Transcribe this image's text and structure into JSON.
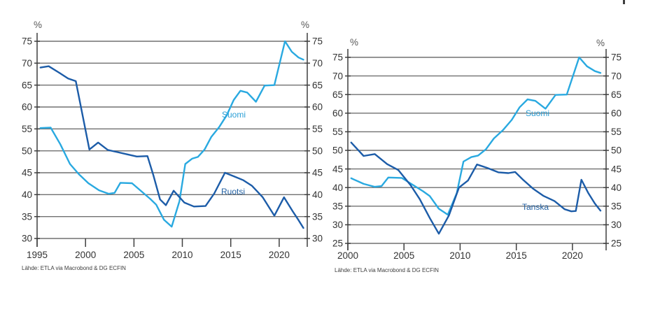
{
  "page": {
    "background": "#ffffff"
  },
  "styles": {
    "grid_color": "#707070",
    "axis_color": "#3f3f3f",
    "tick_label_color": "#333333",
    "unit_label_color": "#595959",
    "source_color": "#3d3d3d",
    "light_blue": "#29A9E0",
    "dark_blue": "#1C5CA8"
  },
  "chart_data": [
    {
      "type": "line",
      "title": "",
      "xlabel": "",
      "ylabel": "%",
      "unit_label": "%",
      "source_note": "Lähde: ETLA via Macrobond & DG ECFIN",
      "grid": true,
      "legend_position": "inline-labels",
      "y_axis_labels": "both-sides",
      "x_ticks": [
        1995,
        2000,
        2005,
        2010,
        2015,
        2020
      ],
      "y_ticks": [
        30,
        35,
        40,
        45,
        50,
        55,
        60,
        65,
        70,
        75
      ],
      "x_range": [
        1995,
        2022.9
      ],
      "ylim": [
        30,
        75
      ],
      "series": [
        {
          "name": "Suomi",
          "color": "#29A9E0",
          "points": [
            [
              1995.35,
              55.2
            ],
            [
              1996.4,
              55.3
            ],
            [
              1997.4,
              51.5
            ],
            [
              1998.4,
              47.0
            ],
            [
              1999.3,
              44.7
            ],
            [
              2000.3,
              42.6
            ],
            [
              2001.4,
              41.0
            ],
            [
              2002.4,
              40.2
            ],
            [
              2003.0,
              40.4
            ],
            [
              2003.6,
              42.7
            ],
            [
              2004.8,
              42.6
            ],
            [
              2005.8,
              40.7
            ],
            [
              2006.7,
              39.0
            ],
            [
              2007.3,
              37.7
            ],
            [
              2008.1,
              34.3
            ],
            [
              2008.9,
              32.7
            ],
            [
              2009.7,
              38.5
            ],
            [
              2010.3,
              47.0
            ],
            [
              2011.0,
              48.2
            ],
            [
              2011.6,
              48.6
            ],
            [
              2012.3,
              50.3
            ],
            [
              2013.0,
              53.2
            ],
            [
              2013.8,
              55.4
            ],
            [
              2014.6,
              58.2
            ],
            [
              2015.3,
              61.6
            ],
            [
              2016.0,
              63.7
            ],
            [
              2016.7,
              63.3
            ],
            [
              2017.6,
              61.2
            ],
            [
              2018.5,
              64.9
            ],
            [
              2019.5,
              65.0
            ],
            [
              2020.6,
              75.0
            ],
            [
              2021.3,
              72.6
            ],
            [
              2022.0,
              71.3
            ],
            [
              2022.5,
              70.8
            ]
          ]
        },
        {
          "name": "Ruotsi",
          "color": "#1C5CA8",
          "points": [
            [
              1995.35,
              69.0
            ],
            [
              1996.2,
              69.3
            ],
            [
              1997.3,
              67.8
            ],
            [
              1998.2,
              66.5
            ],
            [
              1999.0,
              65.9
            ],
            [
              2000.4,
              50.3
            ],
            [
              2001.3,
              51.9
            ],
            [
              2002.3,
              50.2
            ],
            [
              2003.3,
              49.7
            ],
            [
              2004.3,
              49.2
            ],
            [
              2005.3,
              48.7
            ],
            [
              2006.4,
              48.8
            ],
            [
              2007.0,
              44.5
            ],
            [
              2007.7,
              38.9
            ],
            [
              2008.3,
              37.6
            ],
            [
              2009.1,
              40.9
            ],
            [
              2010.2,
              38.2
            ],
            [
              2011.2,
              37.3
            ],
            [
              2012.4,
              37.4
            ],
            [
              2013.3,
              40.3
            ],
            [
              2014.4,
              45.0
            ],
            [
              2015.3,
              44.2
            ],
            [
              2016.3,
              43.3
            ],
            [
              2017.2,
              42.0
            ],
            [
              2018.3,
              39.4
            ],
            [
              2019.5,
              35.2
            ],
            [
              2020.5,
              39.4
            ],
            [
              2021.4,
              36.2
            ],
            [
              2022.0,
              34.2
            ],
            [
              2022.5,
              32.4
            ]
          ]
        }
      ]
    },
    {
      "type": "line",
      "title": "",
      "xlabel": "",
      "ylabel": "%",
      "unit_label": "%",
      "source_note": "Lähde: ETLA via Macrobond & DG ECFIN",
      "grid": true,
      "legend_position": "inline-labels",
      "y_axis_labels": "both-sides",
      "x_ticks": [
        2000,
        2005,
        2010,
        2015,
        2020
      ],
      "y_ticks": [
        25,
        30,
        35,
        40,
        45,
        50,
        55,
        60,
        65,
        70,
        75
      ],
      "x_range": [
        2000,
        2023.0
      ],
      "ylim": [
        25,
        75
      ],
      "series": [
        {
          "name": "Suomi",
          "color": "#29A9E0",
          "points": [
            [
              2000.3,
              42.5
            ],
            [
              2001.4,
              41.0
            ],
            [
              2002.4,
              40.2
            ],
            [
              2003.0,
              40.4
            ],
            [
              2003.6,
              42.7
            ],
            [
              2004.8,
              42.6
            ],
            [
              2005.8,
              40.7
            ],
            [
              2006.7,
              39.0
            ],
            [
              2007.3,
              37.7
            ],
            [
              2008.1,
              34.3
            ],
            [
              2008.9,
              32.7
            ],
            [
              2009.7,
              38.5
            ],
            [
              2010.3,
              47.0
            ],
            [
              2011.0,
              48.2
            ],
            [
              2011.6,
              48.6
            ],
            [
              2012.3,
              50.3
            ],
            [
              2013.0,
              53.2
            ],
            [
              2013.8,
              55.4
            ],
            [
              2014.6,
              58.2
            ],
            [
              2015.3,
              61.6
            ],
            [
              2016.0,
              63.7
            ],
            [
              2016.7,
              63.3
            ],
            [
              2017.6,
              61.2
            ],
            [
              2018.5,
              64.9
            ],
            [
              2019.5,
              65.0
            ],
            [
              2020.6,
              75.0
            ],
            [
              2021.3,
              72.6
            ],
            [
              2022.0,
              71.3
            ],
            [
              2022.5,
              70.8
            ]
          ]
        },
        {
          "name": "Tanska",
          "color": "#1C5CA8",
          "points": [
            [
              2000.3,
              52.1
            ],
            [
              2001.4,
              48.5
            ],
            [
              2002.4,
              49.0
            ],
            [
              2003.5,
              46.3
            ],
            [
              2004.5,
              44.7
            ],
            [
              2005.6,
              40.6
            ],
            [
              2006.4,
              36.9
            ],
            [
              2007.3,
              31.8
            ],
            [
              2008.1,
              27.6
            ],
            [
              2009.0,
              32.5
            ],
            [
              2009.9,
              40.0
            ],
            [
              2010.7,
              41.9
            ],
            [
              2011.5,
              46.2
            ],
            [
              2012.4,
              45.3
            ],
            [
              2013.4,
              44.1
            ],
            [
              2014.3,
              43.9
            ],
            [
              2014.9,
              44.2
            ],
            [
              2015.6,
              42.1
            ],
            [
              2016.5,
              39.7
            ],
            [
              2017.4,
              37.8
            ],
            [
              2018.4,
              36.4
            ],
            [
              2019.3,
              34.2
            ],
            [
              2019.9,
              33.6
            ],
            [
              2020.3,
              33.7
            ],
            [
              2020.8,
              42.1
            ],
            [
              2021.4,
              38.6
            ],
            [
              2022.0,
              35.7
            ],
            [
              2022.5,
              33.8
            ]
          ]
        }
      ]
    }
  ]
}
